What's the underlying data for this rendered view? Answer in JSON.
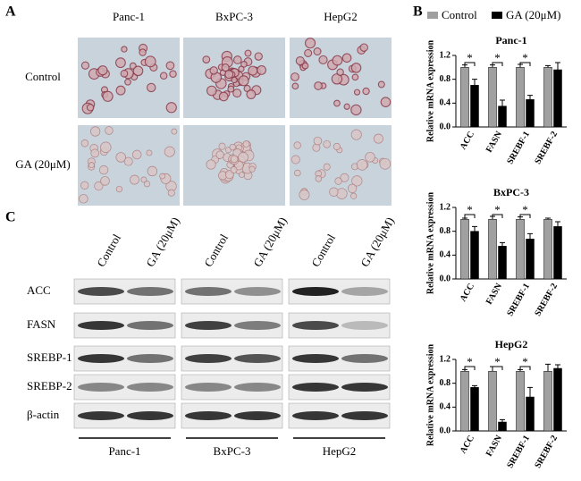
{
  "panel_labels": [
    "A",
    "B",
    "C"
  ],
  "panel_a": {
    "columns": [
      "Panc-1",
      "BxPC-3",
      "HepG2"
    ],
    "rows": [
      "Control",
      "GA (20μM)"
    ]
  },
  "panel_c": {
    "lanes": [
      "Control",
      "GA (20μM)"
    ],
    "proteins": [
      "ACC",
      "FASN",
      "SREBP-1",
      "SREBP-2",
      "β-actin"
    ],
    "cell_lines": [
      "Panc-1",
      "BxPC-3",
      "HepG2"
    ]
  },
  "chart_data": [
    {
      "type": "bar",
      "title": "Panc-1",
      "y_label": "Relative mRNA expression",
      "categories": [
        "ACC",
        "FASN",
        "SREBF-1",
        "SREBF-2"
      ],
      "series": [
        {
          "name": "Control",
          "color": "#a0a0a0",
          "values": [
            1.0,
            1.0,
            1.0,
            1.0
          ],
          "errors": [
            0.04,
            0.04,
            0.05,
            0.03
          ]
        },
        {
          "name": "GA (20μM)",
          "color": "#000000",
          "values": [
            0.7,
            0.35,
            0.46,
            0.96
          ],
          "errors": [
            0.1,
            0.1,
            0.07,
            0.12
          ]
        }
      ],
      "annotations": [
        "*",
        "*",
        "*"
      ],
      "ylim": [
        0,
        1.2
      ],
      "yticks": [
        {
          "value": 0,
          "label": "0.0"
        },
        0.4,
        0.8,
        1.2
      ]
    },
    {
      "type": "bar",
      "title": "BxPC-3",
      "y_label": "Relative mRNA expression",
      "categories": [
        "ACC",
        "FASN",
        "SREBF-1",
        "SREBF-2"
      ],
      "series": [
        {
          "name": "Control",
          "color": "#a0a0a0",
          "values": [
            1.0,
            1.0,
            1.0,
            1.0
          ],
          "errors": [
            0.02,
            0.05,
            0.04,
            0.02
          ]
        },
        {
          "name": "GA (20μM)",
          "color": "#000000",
          "values": [
            0.8,
            0.55,
            0.67,
            0.88
          ],
          "errors": [
            0.08,
            0.06,
            0.09,
            0.08
          ]
        }
      ],
      "annotations": [
        "*",
        "*",
        "*"
      ],
      "ylim": [
        0,
        1.2
      ],
      "yticks": [
        {
          "value": 0,
          "label": "0.0"
        },
        0.4,
        0.8,
        1.2
      ]
    },
    {
      "type": "bar",
      "title": "HepG2",
      "y_label": "Relative mRNA expression",
      "categories": [
        "ACC",
        "FASN",
        "SREBF-1",
        "SREBF-2"
      ],
      "series": [
        {
          "name": "Control",
          "color": "#a0a0a0",
          "values": [
            1.0,
            1.0,
            1.0,
            1.0
          ],
          "errors": [
            0.03,
            0.08,
            0.03,
            0.12
          ]
        },
        {
          "name": "GA (20μM)",
          "color": "#000000",
          "values": [
            0.73,
            0.15,
            0.57,
            1.05
          ],
          "errors": [
            0.03,
            0.04,
            0.16,
            0.06
          ]
        }
      ],
      "annotations": [
        "*",
        "*",
        "*"
      ],
      "ylim": [
        0,
        1.2
      ],
      "yticks": [
        {
          "value": 0,
          "label": "0.0"
        },
        0.4,
        0.8,
        1.2
      ]
    }
  ]
}
